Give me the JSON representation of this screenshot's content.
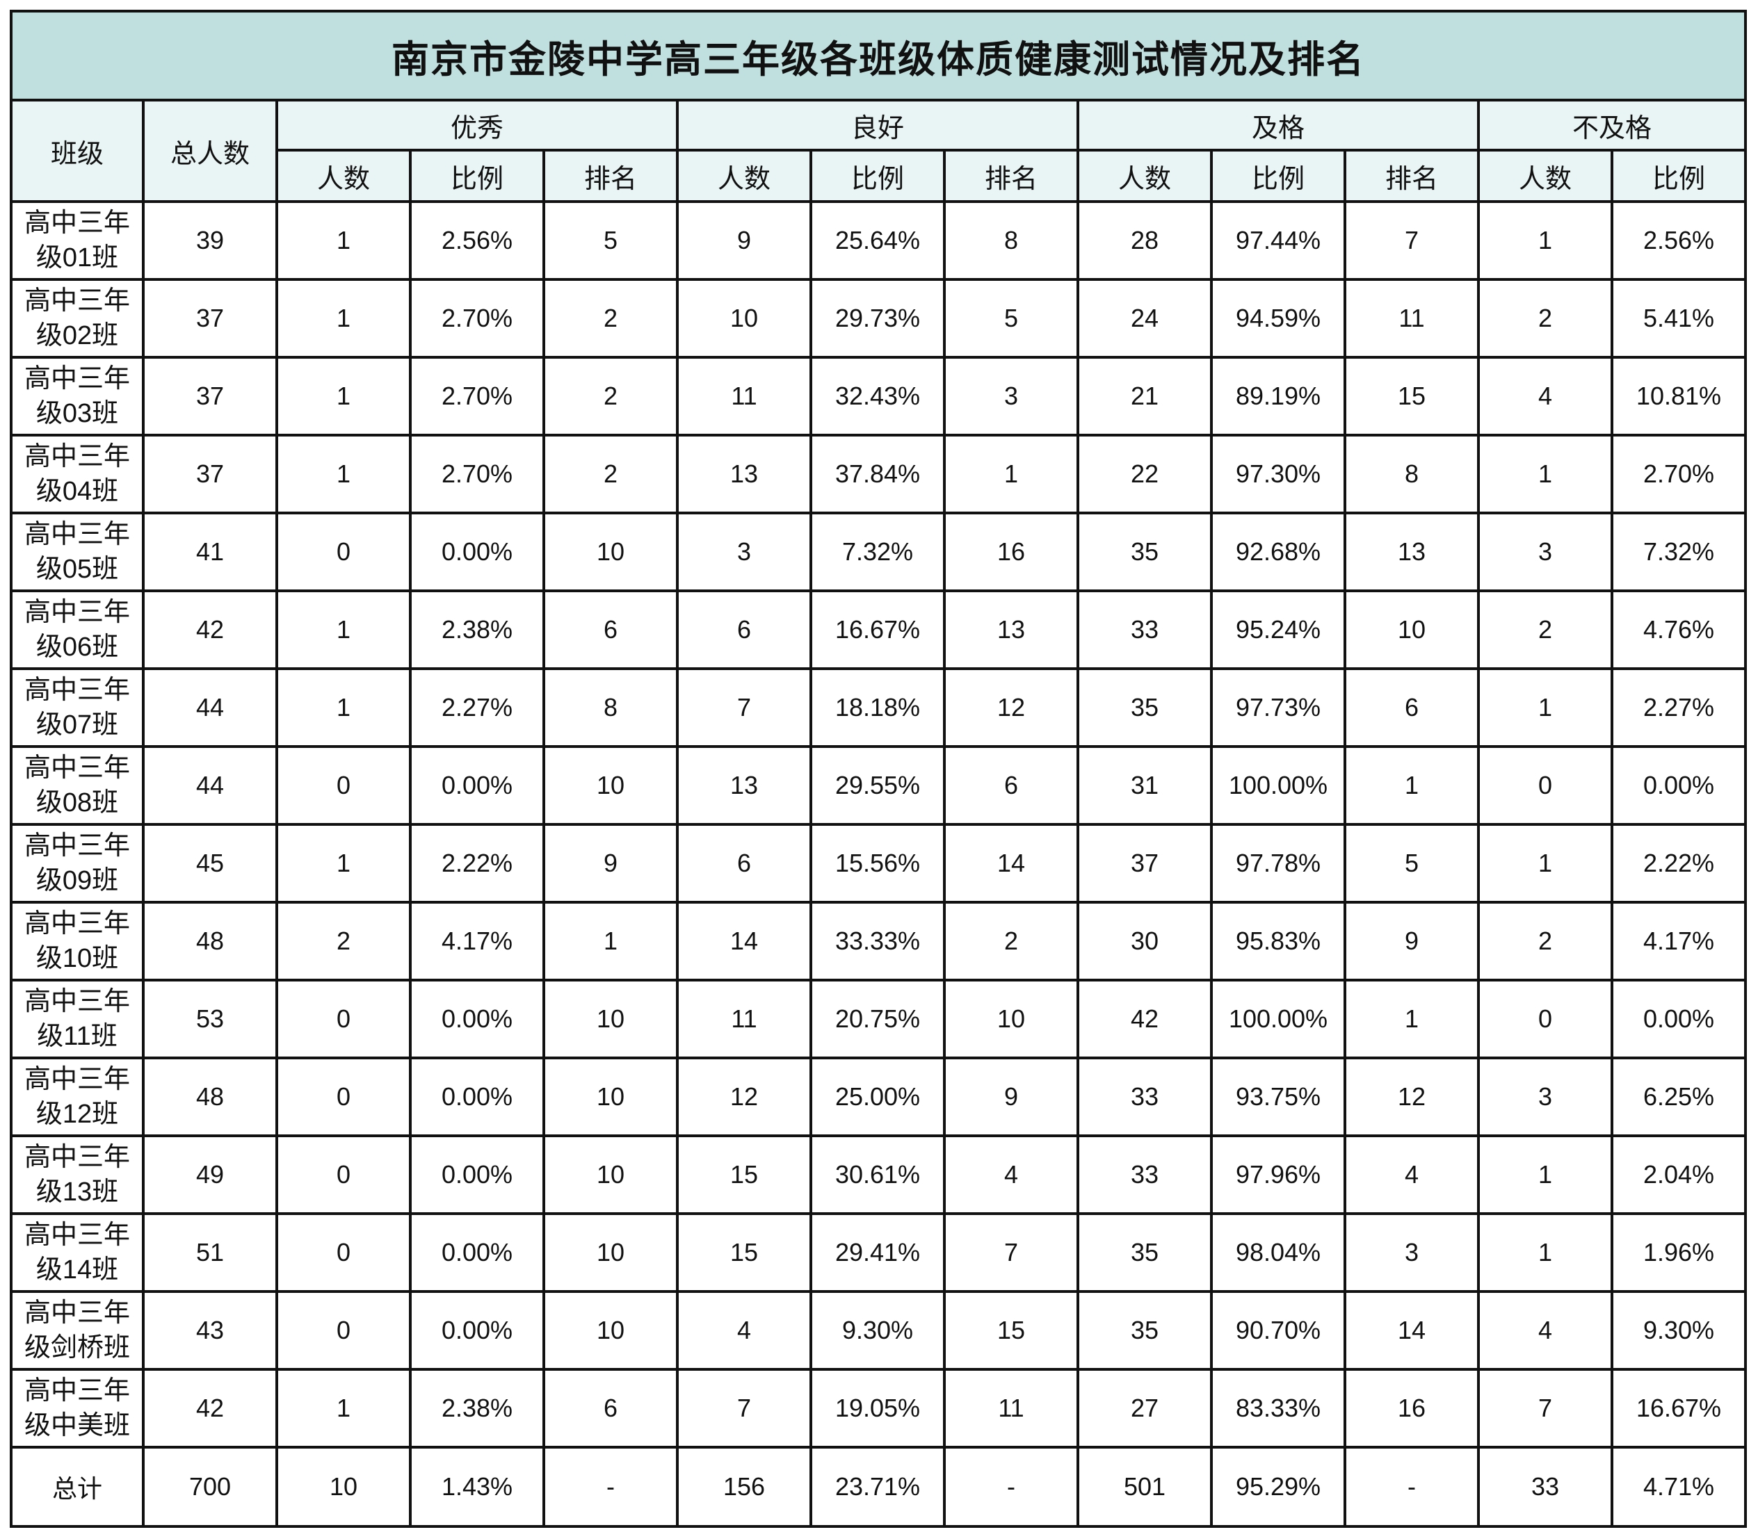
{
  "title": "南京市金陵中学高三年级各班级体质健康测试情况及排名",
  "headers": {
    "class": "班级",
    "total": "总人数",
    "groups": [
      "优秀",
      "良好",
      "及格",
      "不及格"
    ],
    "sub": [
      "人数",
      "比例",
      "排名",
      "人数",
      "比例",
      "排名",
      "人数",
      "比例",
      "排名",
      "人数",
      "比例"
    ]
  },
  "rows": [
    [
      "高中三年级01班",
      "39",
      "1",
      "2.56%",
      "5",
      "9",
      "25.64%",
      "8",
      "28",
      "97.44%",
      "7",
      "1",
      "2.56%"
    ],
    [
      "高中三年级02班",
      "37",
      "1",
      "2.70%",
      "2",
      "10",
      "29.73%",
      "5",
      "24",
      "94.59%",
      "11",
      "2",
      "5.41%"
    ],
    [
      "高中三年级03班",
      "37",
      "1",
      "2.70%",
      "2",
      "11",
      "32.43%",
      "3",
      "21",
      "89.19%",
      "15",
      "4",
      "10.81%"
    ],
    [
      "高中三年级04班",
      "37",
      "1",
      "2.70%",
      "2",
      "13",
      "37.84%",
      "1",
      "22",
      "97.30%",
      "8",
      "1",
      "2.70%"
    ],
    [
      "高中三年级05班",
      "41",
      "0",
      "0.00%",
      "10",
      "3",
      "7.32%",
      "16",
      "35",
      "92.68%",
      "13",
      "3",
      "7.32%"
    ],
    [
      "高中三年级06班",
      "42",
      "1",
      "2.38%",
      "6",
      "6",
      "16.67%",
      "13",
      "33",
      "95.24%",
      "10",
      "2",
      "4.76%"
    ],
    [
      "高中三年级07班",
      "44",
      "1",
      "2.27%",
      "8",
      "7",
      "18.18%",
      "12",
      "35",
      "97.73%",
      "6",
      "1",
      "2.27%"
    ],
    [
      "高中三年级08班",
      "44",
      "0",
      "0.00%",
      "10",
      "13",
      "29.55%",
      "6",
      "31",
      "100.00%",
      "1",
      "0",
      "0.00%"
    ],
    [
      "高中三年级09班",
      "45",
      "1",
      "2.22%",
      "9",
      "6",
      "15.56%",
      "14",
      "37",
      "97.78%",
      "5",
      "1",
      "2.22%"
    ],
    [
      "高中三年级10班",
      "48",
      "2",
      "4.17%",
      "1",
      "14",
      "33.33%",
      "2",
      "30",
      "95.83%",
      "9",
      "2",
      "4.17%"
    ],
    [
      "高中三年级11班",
      "53",
      "0",
      "0.00%",
      "10",
      "11",
      "20.75%",
      "10",
      "42",
      "100.00%",
      "1",
      "0",
      "0.00%"
    ],
    [
      "高中三年级12班",
      "48",
      "0",
      "0.00%",
      "10",
      "12",
      "25.00%",
      "9",
      "33",
      "93.75%",
      "12",
      "3",
      "6.25%"
    ],
    [
      "高中三年级13班",
      "49",
      "0",
      "0.00%",
      "10",
      "15",
      "30.61%",
      "4",
      "33",
      "97.96%",
      "4",
      "1",
      "2.04%"
    ],
    [
      "高中三年级14班",
      "51",
      "0",
      "0.00%",
      "10",
      "15",
      "29.41%",
      "7",
      "35",
      "98.04%",
      "3",
      "1",
      "1.96%"
    ],
    [
      "高中三年级剑桥班",
      "43",
      "0",
      "0.00%",
      "10",
      "4",
      "9.30%",
      "15",
      "35",
      "90.70%",
      "14",
      "4",
      "9.30%"
    ],
    [
      "高中三年级中美班",
      "42",
      "1",
      "2.38%",
      "6",
      "7",
      "19.05%",
      "11",
      "27",
      "83.33%",
      "16",
      "7",
      "16.67%"
    ]
  ],
  "total": [
    "总计",
    "700",
    "10",
    "1.43%",
    "-",
    "156",
    "23.71%",
    "-",
    "501",
    "95.29%",
    "-",
    "33",
    "4.71%"
  ]
}
